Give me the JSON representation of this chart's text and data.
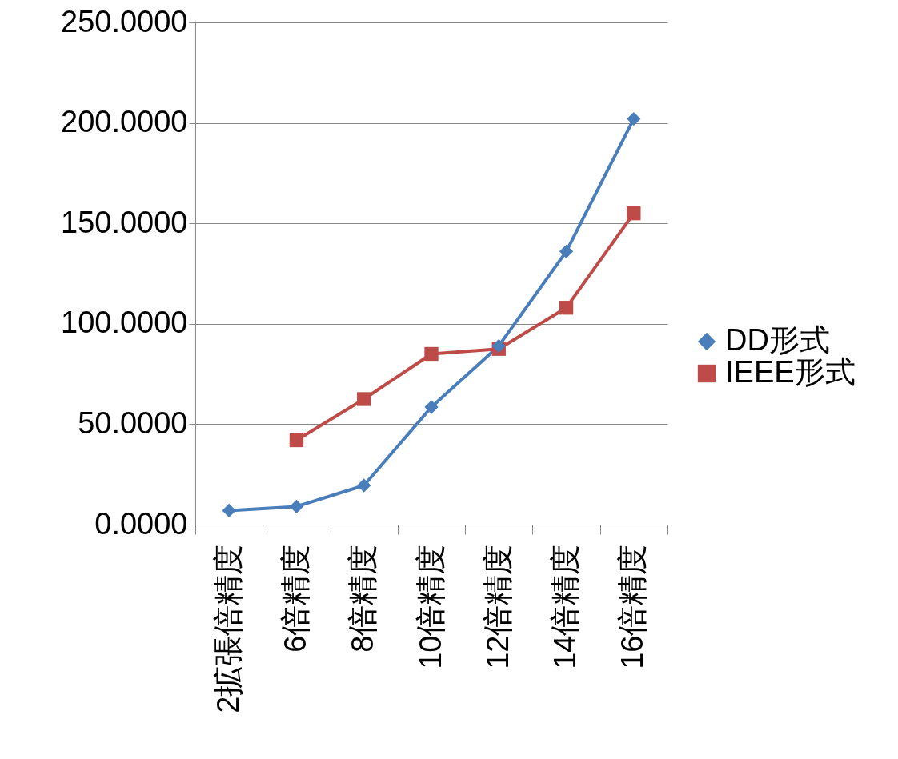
{
  "chart_data": {
    "type": "line",
    "categories": [
      "2拡張倍精度",
      "6倍精度",
      "8倍精度",
      "10倍精度",
      "12倍精度",
      "14倍精度",
      "16倍精度"
    ],
    "series": [
      {
        "name": "DD形式",
        "color": "#4a7ebb",
        "marker": "diamond",
        "values": [
          7,
          9,
          19.5,
          58.5,
          89,
          136,
          202
        ]
      },
      {
        "name": "IEEE形式",
        "color": "#be4b48",
        "marker": "square",
        "values": [
          null,
          42,
          62.5,
          85,
          87.5,
          108,
          155
        ]
      }
    ],
    "ylim": [
      0,
      250
    ],
    "yticks": [
      {
        "value": 0,
        "label": "0.0000"
      },
      {
        "value": 50,
        "label": "50.0000"
      },
      {
        "value": 100,
        "label": "100.0000"
      },
      {
        "value": 150,
        "label": "150.0000"
      },
      {
        "value": 200,
        "label": "200.0000"
      },
      {
        "value": 250,
        "label": "250.0000"
      }
    ],
    "grid": "y",
    "legend": "right"
  }
}
